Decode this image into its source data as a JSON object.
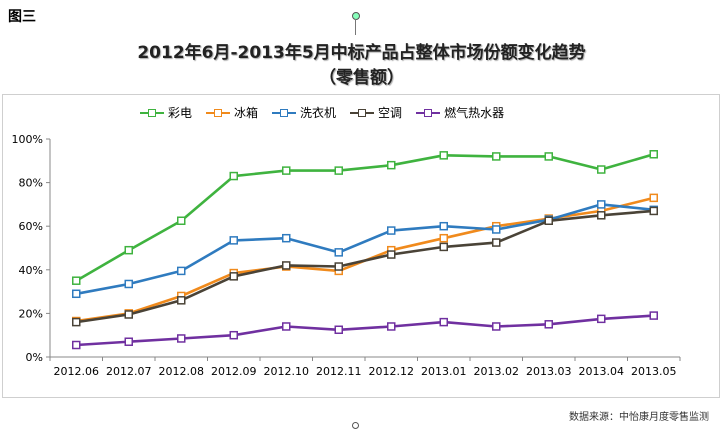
{
  "figure_label": "图三",
  "source": "数据来源：中怡康月度零售监测",
  "chart_data": {
    "type": "line",
    "title": "2012年6月-2013年5月中标产品占整体市场份额变化趋势",
    "subtitle": "（零售额）",
    "xlabel": "",
    "ylabel": "",
    "categories": [
      "2012.06",
      "2012.07",
      "2012.08",
      "2012.09",
      "2012.10",
      "2012.11",
      "2012.12",
      "2013.01",
      "2013.02",
      "2013.03",
      "2013.04",
      "2013.05"
    ],
    "ylim": [
      0,
      100
    ],
    "yticks": [
      "0%",
      "20%",
      "40%",
      "60%",
      "80%",
      "100%"
    ],
    "grid": false,
    "legend": "top",
    "series": [
      {
        "name": "彩电",
        "color": "#3fb33f",
        "values": [
          35,
          49,
          62.5,
          83,
          85.5,
          85.5,
          88,
          92.5,
          92,
          92,
          86,
          93
        ]
      },
      {
        "name": "冰箱",
        "color": "#f08a1c",
        "values": [
          16.5,
          20,
          28,
          38.5,
          41.5,
          39.5,
          49,
          54.5,
          60,
          63.5,
          67,
          73
        ]
      },
      {
        "name": "洗衣机",
        "color": "#2f7bbf",
        "values": [
          29,
          33.5,
          39.5,
          53.5,
          54.5,
          48,
          58,
          60,
          58.5,
          63,
          70,
          67.5
        ]
      },
      {
        "name": "空调",
        "color": "#4a4337",
        "values": [
          16,
          19.5,
          26,
          37,
          42,
          41.5,
          47,
          50.5,
          52.5,
          62.5,
          65,
          67
        ]
      },
      {
        "name": "燃气热水器",
        "color": "#7030a0",
        "values": [
          5.5,
          7,
          8.5,
          10,
          14,
          12.5,
          14,
          16,
          14,
          15,
          17.5,
          19
        ]
      }
    ]
  }
}
